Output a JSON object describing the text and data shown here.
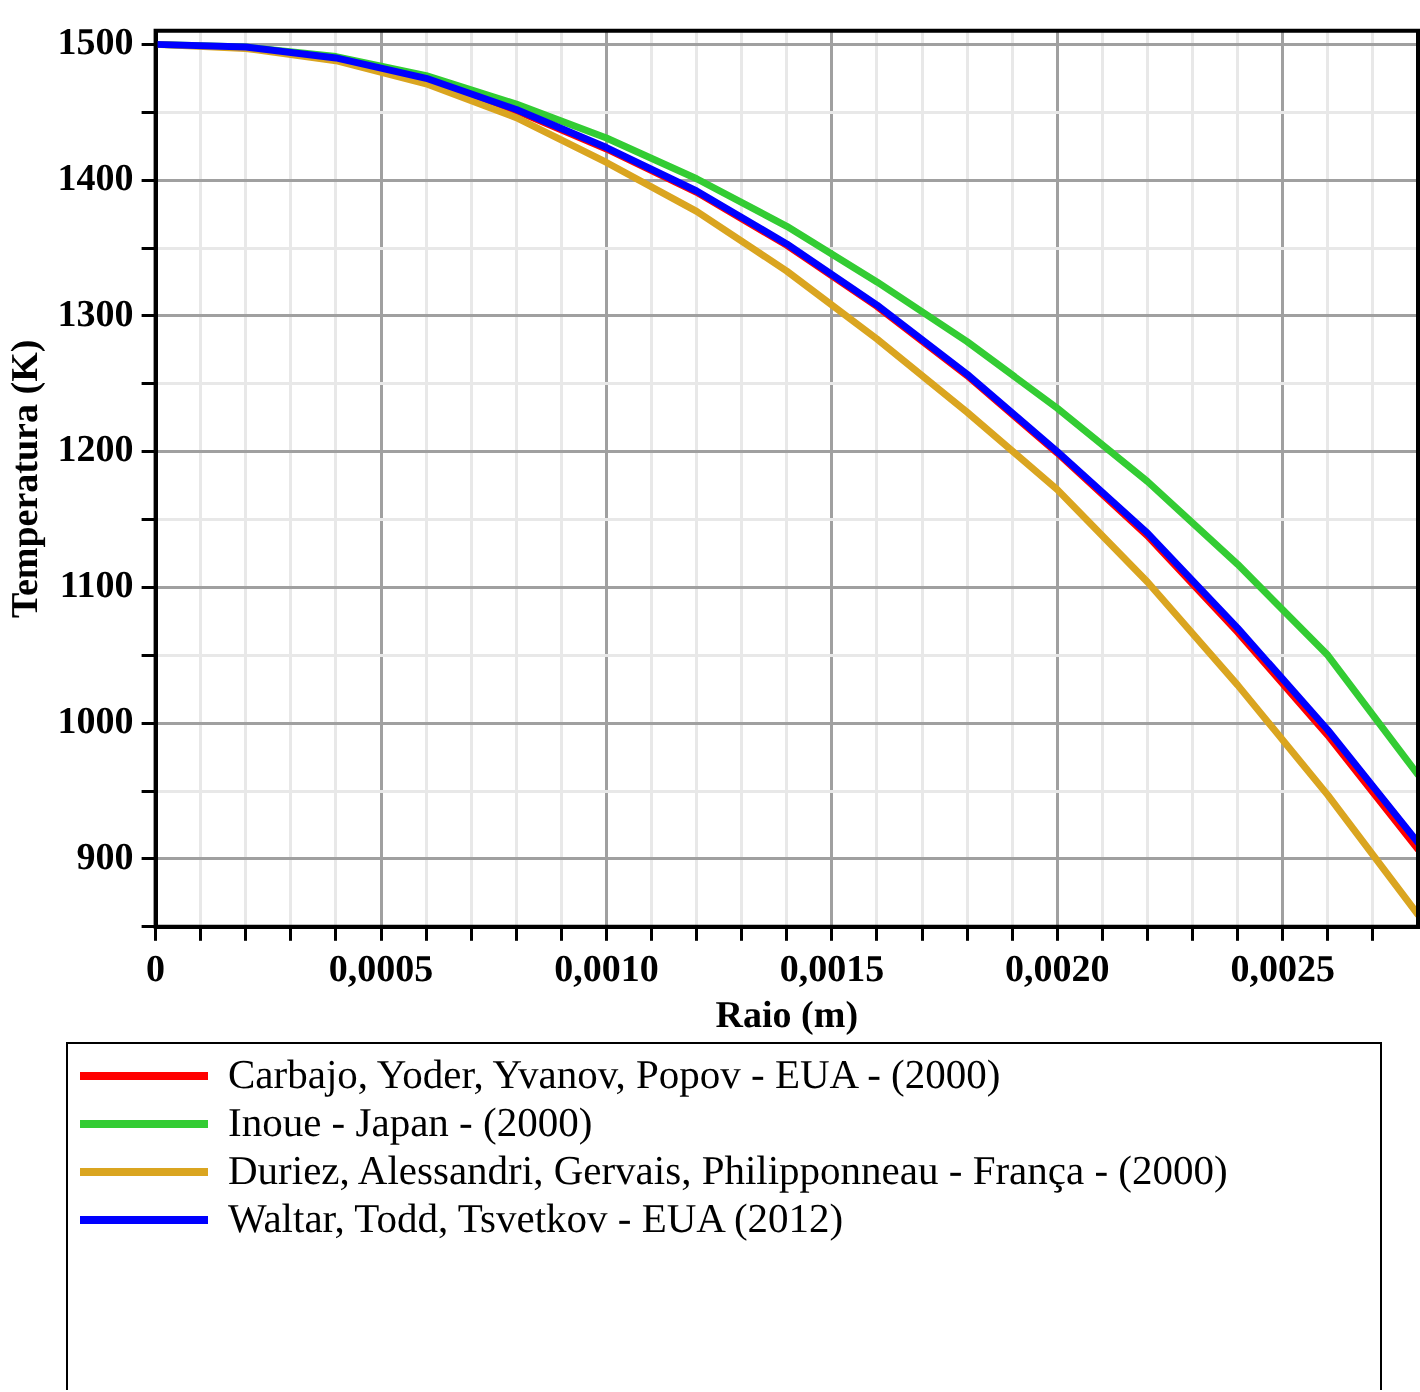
{
  "chart_data": {
    "type": "line",
    "xlabel": "Raio (m)",
    "ylabel": "Temperatura (K)",
    "x": [
      0,
      0.0002,
      0.0004,
      0.0006,
      0.0008,
      0.001,
      0.0012,
      0.0014,
      0.0016,
      0.0018,
      0.002,
      0.0022,
      0.0024,
      0.0026,
      0.0028
    ],
    "series": [
      {
        "name": "Carbajo, Yoder, Yvanov, Popov - EUA - (2000)",
        "color": "#ff0000",
        "values": [
          null,
          null,
          null,
          1475,
          1451,
          1423,
          1391,
          1352,
          1307,
          1256,
          1199,
          1138,
          1067,
          991,
          907
        ]
      },
      {
        "name": "Inoue - Japan - (2000)",
        "color": "#33cc33",
        "values": [
          1500,
          1498,
          1491,
          1477,
          1456,
          1431,
          1401,
          1366,
          1325,
          1281,
          1232,
          1178,
          1117,
          1050,
          962
        ]
      },
      {
        "name": "Duriez, Alessandri, Gervais, Philipponneau - França - (2000)",
        "color": "#daa520",
        "values": [
          1500,
          1497,
          1488,
          1471,
          1446,
          1413,
          1377,
          1333,
          1283,
          1229,
          1172,
          1104,
          1028,
          947,
          859
        ]
      },
      {
        "name": "Waltar, Todd, Tsvetkov - EUA (2012)",
        "color": "#0000ff",
        "values": [
          1500,
          1498,
          1490,
          1475,
          1452,
          1424,
          1392,
          1353,
          1308,
          1257,
          1200,
          1140,
          1070,
          995,
          912
        ]
      }
    ],
    "xlim": [
      0,
      0.0028
    ],
    "xticks": [
      {
        "value": 0,
        "label": "0"
      },
      {
        "value": 0.0001,
        "label": null
      },
      {
        "value": 0.0002,
        "label": null
      },
      {
        "value": 0.0003,
        "label": null
      },
      {
        "value": 0.0004,
        "label": null
      },
      {
        "value": 0.0005,
        "label": "0,0005"
      },
      {
        "value": 0.0006,
        "label": null
      },
      {
        "value": 0.0007,
        "label": null
      },
      {
        "value": 0.0008,
        "label": null
      },
      {
        "value": 0.0009,
        "label": null
      },
      {
        "value": 0.001,
        "label": "0,0010"
      },
      {
        "value": 0.0011,
        "label": null
      },
      {
        "value": 0.0012,
        "label": null
      },
      {
        "value": 0.0013,
        "label": null
      },
      {
        "value": 0.0014,
        "label": null
      },
      {
        "value": 0.0015,
        "label": "0,0015"
      },
      {
        "value": 0.0016,
        "label": null
      },
      {
        "value": 0.0017,
        "label": null
      },
      {
        "value": 0.0018,
        "label": null
      },
      {
        "value": 0.0019,
        "label": null
      },
      {
        "value": 0.002,
        "label": "0,0020"
      },
      {
        "value": 0.0021,
        "label": null
      },
      {
        "value": 0.0022,
        "label": null
      },
      {
        "value": 0.0023,
        "label": null
      },
      {
        "value": 0.0024,
        "label": null
      },
      {
        "value": 0.0025,
        "label": "0,0025"
      },
      {
        "value": 0.0026,
        "label": null
      },
      {
        "value": 0.0027,
        "label": null
      }
    ],
    "ylim": [
      850,
      1510
    ],
    "yticks": [
      {
        "value": 850,
        "label": null
      },
      900,
      {
        "value": 950,
        "label": null
      },
      1000,
      {
        "value": 1050,
        "label": null
      },
      1100,
      {
        "value": 1150,
        "label": null
      },
      1200,
      {
        "value": 1250,
        "label": null
      },
      1300,
      {
        "value": 1350,
        "label": null
      },
      1400,
      {
        "value": 1450,
        "label": null
      },
      1500
    ],
    "grid": true,
    "legend": "bottom",
    "marker": "none",
    "line_style": "solid"
  }
}
